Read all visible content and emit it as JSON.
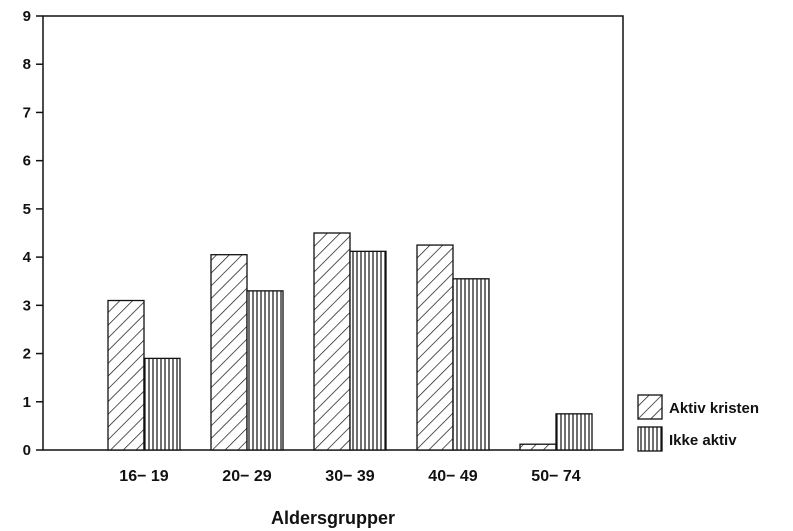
{
  "chart_data": {
    "type": "bar",
    "title": "",
    "xlabel": "Aldersgrupper",
    "ylabel": "",
    "ylim": [
      0,
      9
    ],
    "yticks": [
      0,
      1,
      2,
      3,
      4,
      5,
      6,
      7,
      8,
      9
    ],
    "categories": [
      "16-19",
      "20-29",
      "30-39",
      "40-49",
      "50-74"
    ],
    "series": [
      {
        "name": "Aktiv kristen",
        "values": [
          3.1,
          4.05,
          4.5,
          4.25,
          0.12
        ],
        "pattern": "diagonal-hatch"
      },
      {
        "name": "Ikke aktiv",
        "values": [
          1.9,
          3.3,
          4.12,
          3.55,
          0.75
        ],
        "pattern": "vertical-hatch"
      }
    ],
    "grid": false,
    "legend_position": "bottom-right outside"
  }
}
